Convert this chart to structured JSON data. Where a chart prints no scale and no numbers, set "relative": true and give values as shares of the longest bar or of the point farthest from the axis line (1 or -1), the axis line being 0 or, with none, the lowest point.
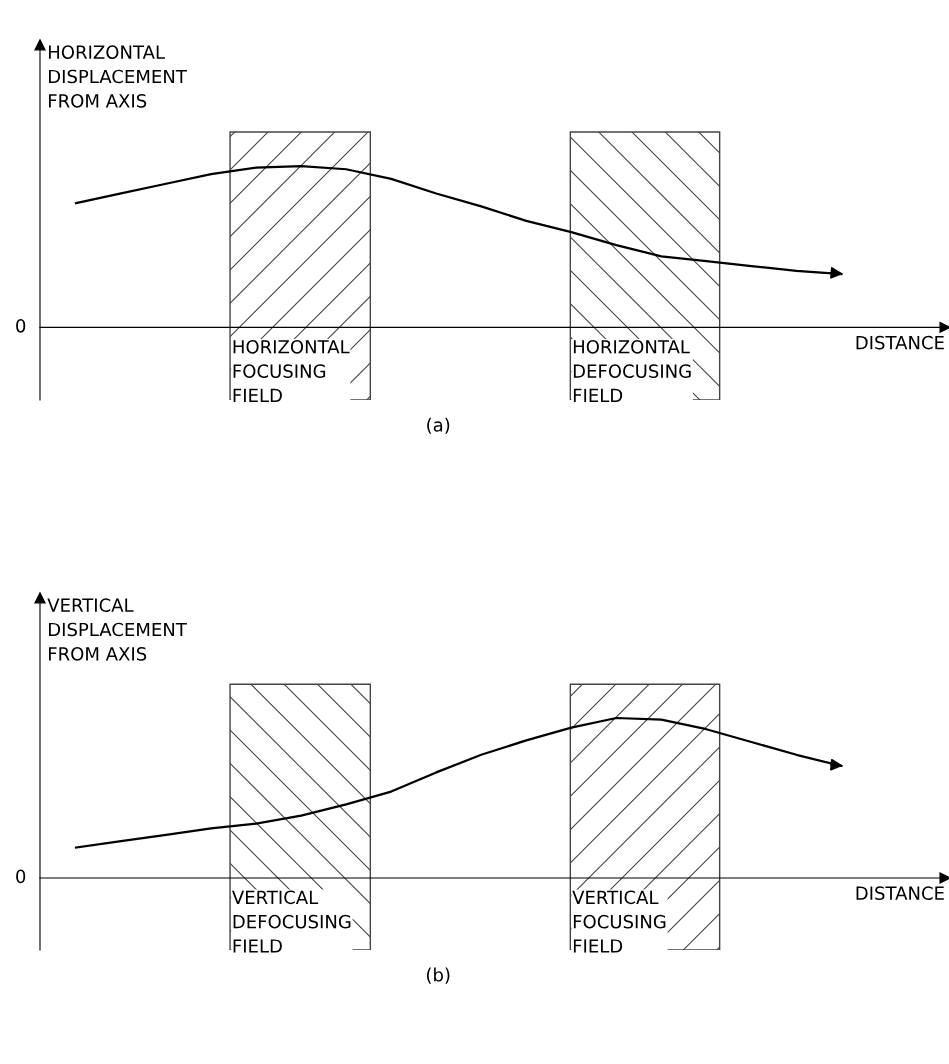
{
  "chart_data": [
    {
      "type": "line",
      "relative": true,
      "ylabel": "HORIZONTAL\nDISPLACEMENT\nFROM AXIS",
      "xlabel": "DISTANCE",
      "categories": [
        null,
        null,
        null,
        null,
        null,
        null,
        null,
        null,
        null,
        null,
        null,
        null,
        null,
        null,
        null,
        null,
        null,
        null
      ],
      "series": [
        {
          "color": "#000000",
          "values": [
            0.77,
            0.83,
            0.89,
            0.95,
            0.99,
            1,
            0.98,
            0.92,
            0.83,
            0.75,
            0.66,
            0.59,
            0.51,
            0.44,
            0.41,
            0.38,
            0.35,
            0.33
          ]
        }
      ],
      "annotations": [
        "HORIZONTAL\nFOCUSING\nFIELD",
        "HORIZONTAL\nDEFOCUSING\nFIELD",
        "(a)",
        "0"
      ],
      "marker": "none",
      "line_style": "solid",
      "legend": false
    },
    {
      "type": "line",
      "relative": true,
      "ylabel": "VERTICAL\nDISPLACEMENT\nFROM AXIS",
      "xlabel": "DISTANCE",
      "categories": [
        null,
        null,
        null,
        null,
        null,
        null,
        null,
        null,
        null,
        null,
        null,
        null,
        null,
        null,
        null,
        null,
        null,
        null
      ],
      "series": [
        {
          "color": "#000000",
          "values": [
            0.19,
            0.23,
            0.27,
            0.31,
            0.34,
            0.39,
            0.46,
            0.54,
            0.66,
            0.77,
            0.86,
            0.94,
            1,
            0.99,
            0.93,
            0.85,
            0.77,
            0.7
          ]
        }
      ],
      "annotations": [
        "VERTICAL\nDEFOCUSING\nFIELD",
        "VERTICAL\nFOCUSING\nFIELD",
        "(b)",
        "0"
      ],
      "marker": "none",
      "line_style": "solid",
      "legend": false
    }
  ]
}
